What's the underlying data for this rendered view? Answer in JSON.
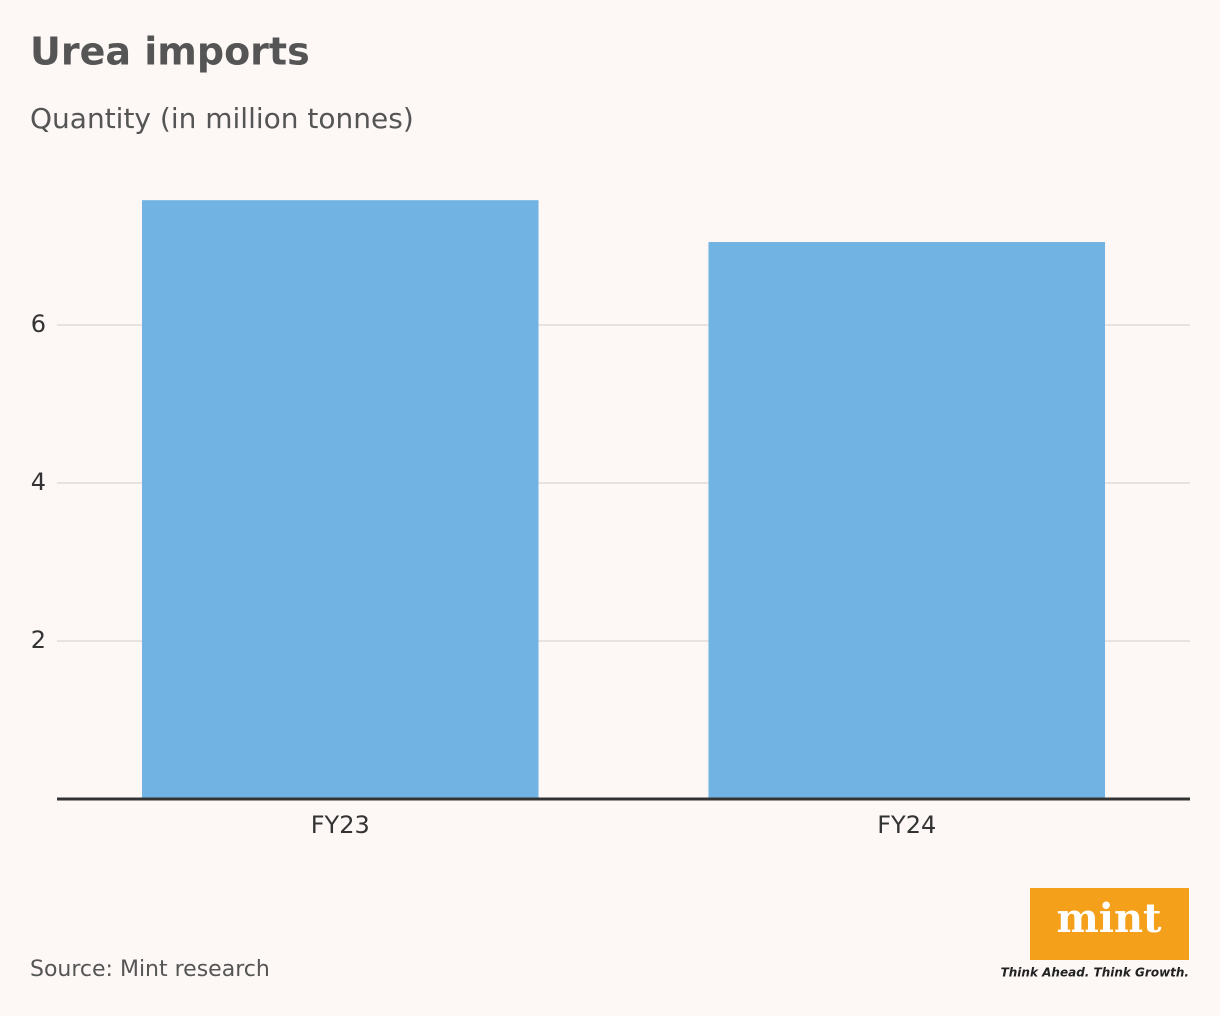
{
  "chart_data": {
    "type": "bar",
    "title": "Urea imports",
    "subtitle": "Quantity (in million tonnes)",
    "categories": [
      "FY23",
      "FY24"
    ],
    "values": [
      7.58,
      7.05
    ],
    "color": "#71b3e2",
    "ylim": [
      0,
      8
    ],
    "yticks": [
      2,
      4,
      6
    ],
    "grid": true,
    "source": "Source: Mint research",
    "logo": "mint",
    "logo_tagline": "Think Ahead. Think Growth."
  }
}
